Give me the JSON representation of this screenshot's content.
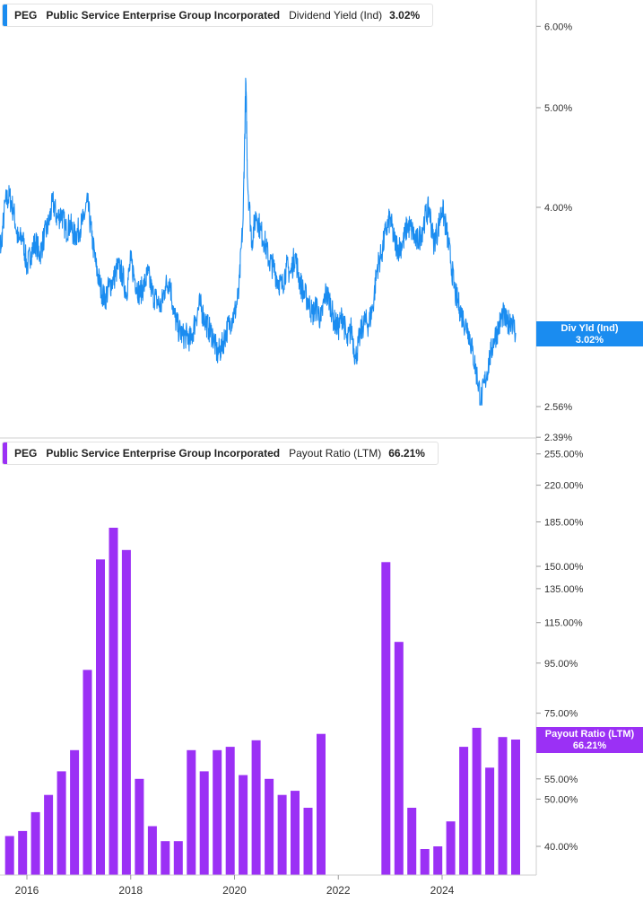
{
  "panels": [
    {
      "ticker": "PEG",
      "company": "Public Service Enterprise Group Incorporated",
      "metric": "Dividend Yield (Ind)",
      "value": "3.02%",
      "color": "#1a8cf0"
    },
    {
      "ticker": "PEG",
      "company": "Public Service Enterprise Group Incorporated",
      "metric": "Payout Ratio (LTM)",
      "value": "66.21%",
      "color": "#9b30f5"
    }
  ],
  "tags": {
    "top": {
      "label": "Div Yld (Ind)",
      "value": "3.02%",
      "color": "#1a8cf0"
    },
    "bottom": {
      "label": "Payout Ratio (LTM)",
      "value": "66.21%",
      "color": "#9b30f5"
    }
  },
  "chart_data": [
    {
      "type": "line",
      "title": "Dividend Yield (Ind)",
      "series": [
        {
          "name": "Div Yld (Ind)"
        }
      ],
      "x_range": [
        "2015-06",
        "2025-06"
      ],
      "y_scale": "log",
      "y_range": [
        2.39,
        6.6
      ],
      "y_ticks": [
        "6.00%",
        "5.00%",
        "4.00%",
        "2.56%",
        "2.39%"
      ],
      "points": [
        [
          "2015-06",
          3.9
        ],
        [
          "2015-07",
          3.65
        ],
        [
          "2015-08",
          4.05
        ],
        [
          "2015-09",
          4.1
        ],
        [
          "2015-10",
          3.95
        ],
        [
          "2015-11",
          3.7
        ],
        [
          "2015-12",
          3.75
        ],
        [
          "2016-01",
          3.5
        ],
        [
          "2016-02",
          3.62
        ],
        [
          "2016-03",
          3.7
        ],
        [
          "2016-04",
          3.6
        ],
        [
          "2016-05",
          3.75
        ],
        [
          "2016-06",
          3.85
        ],
        [
          "2016-07",
          4.05
        ],
        [
          "2016-08",
          3.9
        ],
        [
          "2016-09",
          3.95
        ],
        [
          "2016-10",
          3.8
        ],
        [
          "2016-11",
          3.85
        ],
        [
          "2016-12",
          3.75
        ],
        [
          "2017-01",
          3.8
        ],
        [
          "2017-02",
          3.88
        ],
        [
          "2017-03",
          4.05
        ],
        [
          "2017-04",
          3.75
        ],
        [
          "2017-05",
          3.5
        ],
        [
          "2017-06",
          3.35
        ],
        [
          "2017-07",
          3.25
        ],
        [
          "2017-08",
          3.35
        ],
        [
          "2017-09",
          3.4
        ],
        [
          "2017-10",
          3.5
        ],
        [
          "2017-11",
          3.45
        ],
        [
          "2017-12",
          3.3
        ],
        [
          "2018-01",
          3.55
        ],
        [
          "2018-02",
          3.4
        ],
        [
          "2018-03",
          3.3
        ],
        [
          "2018-04",
          3.35
        ],
        [
          "2018-05",
          3.45
        ],
        [
          "2018-06",
          3.3
        ],
        [
          "2018-07",
          3.25
        ],
        [
          "2018-08",
          3.2
        ],
        [
          "2018-09",
          3.35
        ],
        [
          "2018-10",
          3.4
        ],
        [
          "2018-11",
          3.15
        ],
        [
          "2018-12",
          3.05
        ],
        [
          "2019-01",
          3.0
        ],
        [
          "2019-02",
          3.0
        ],
        [
          "2019-03",
          2.97
        ],
        [
          "2019-04",
          3.12
        ],
        [
          "2019-05",
          3.22
        ],
        [
          "2019-06",
          3.12
        ],
        [
          "2019-07",
          3.05
        ],
        [
          "2019-08",
          3.0
        ],
        [
          "2019-09",
          2.88
        ],
        [
          "2019-10",
          2.92
        ],
        [
          "2019-11",
          3.02
        ],
        [
          "2019-12",
          3.1
        ],
        [
          "2020-01",
          3.15
        ],
        [
          "2020-02",
          3.3
        ],
        [
          "2020-03",
          3.9
        ],
        [
          "2020-03-20",
          5.3
        ],
        [
          "2020-04",
          4.25
        ],
        [
          "2020-05",
          3.7
        ],
        [
          "2020-06",
          3.95
        ],
        [
          "2020-07",
          3.8
        ],
        [
          "2020-08",
          3.7
        ],
        [
          "2020-09",
          3.55
        ],
        [
          "2020-10",
          3.5
        ],
        [
          "2020-11",
          3.4
        ],
        [
          "2020-12",
          3.35
        ],
        [
          "2021-01",
          3.5
        ],
        [
          "2021-02",
          3.45
        ],
        [
          "2021-03",
          3.6
        ],
        [
          "2021-04",
          3.4
        ],
        [
          "2021-05",
          3.3
        ],
        [
          "2021-06",
          3.25
        ],
        [
          "2021-07",
          3.15
        ],
        [
          "2021-08",
          3.2
        ],
        [
          "2021-09",
          3.1
        ],
        [
          "2021-10",
          3.3
        ],
        [
          "2021-11",
          3.25
        ],
        [
          "2021-12",
          3.1
        ],
        [
          "2022-01",
          3.05
        ],
        [
          "2022-02",
          3.15
        ],
        [
          "2022-03",
          2.95
        ],
        [
          "2022-04",
          3.05
        ],
        [
          "2022-05",
          2.85
        ],
        [
          "2022-06",
          3.0
        ],
        [
          "2022-07",
          3.1
        ],
        [
          "2022-08",
          3.08
        ],
        [
          "2022-09",
          3.2
        ],
        [
          "2022-10",
          3.5
        ],
        [
          "2022-11",
          3.6
        ],
        [
          "2022-12",
          3.8
        ],
        [
          "2023-01",
          3.9
        ],
        [
          "2023-02",
          3.7
        ],
        [
          "2023-03",
          3.65
        ],
        [
          "2023-04",
          3.7
        ],
        [
          "2023-05",
          3.85
        ],
        [
          "2023-06",
          3.8
        ],
        [
          "2023-07",
          3.7
        ],
        [
          "2023-08",
          3.75
        ],
        [
          "2023-09",
          3.9
        ],
        [
          "2023-10",
          4.0
        ],
        [
          "2023-11",
          3.7
        ],
        [
          "2023-12",
          3.8
        ],
        [
          "2024-01",
          4.0
        ],
        [
          "2024-02",
          3.8
        ],
        [
          "2024-03",
          3.55
        ],
        [
          "2024-04",
          3.3
        ],
        [
          "2024-05",
          3.2
        ],
        [
          "2024-06",
          3.1
        ],
        [
          "2024-07",
          3.05
        ],
        [
          "2024-08",
          2.9
        ],
        [
          "2024-09",
          2.75
        ],
        [
          "2024-10",
          2.6
        ],
        [
          "2024-11",
          2.72
        ],
        [
          "2024-12",
          2.85
        ],
        [
          "2025-01",
          2.98
        ],
        [
          "2025-02",
          3.05
        ],
        [
          "2025-03",
          3.15
        ],
        [
          "2025-04",
          3.08
        ],
        [
          "2025-05",
          3.12
        ],
        [
          "2025-06",
          3.02
        ]
      ]
    },
    {
      "type": "bar",
      "title": "Payout Ratio (LTM)",
      "series": [
        {
          "name": "Payout Ratio (LTM)"
        }
      ],
      "x_ticks": [
        "2016",
        "2018",
        "2020",
        "2022",
        "2024"
      ],
      "y_scale": "log",
      "y_range": [
        35,
        260
      ],
      "y_ticks": [
        "255.00%",
        "220.00%",
        "185.00%",
        "150.00%",
        "135.00%",
        "115.00%",
        "95.00%",
        "75.00%",
        "55.00%",
        "50.00%",
        "40.00%"
      ],
      "bars": [
        [
          "2015-09",
          42
        ],
        [
          "2015-12",
          43
        ],
        [
          "2016-03",
          47
        ],
        [
          "2016-06",
          51
        ],
        [
          "2016-09",
          57
        ],
        [
          "2016-12",
          63
        ],
        [
          "2017-03",
          92
        ],
        [
          "2017-06",
          155
        ],
        [
          "2017-09",
          180
        ],
        [
          "2017-12",
          162
        ],
        [
          "2018-03",
          55
        ],
        [
          "2018-06",
          44
        ],
        [
          "2018-09",
          41
        ],
        [
          "2018-12",
          41
        ],
        [
          "2019-03",
          63
        ],
        [
          "2019-06",
          57
        ],
        [
          "2019-09",
          63
        ],
        [
          "2019-12",
          64
        ],
        [
          "2020-03",
          56
        ],
        [
          "2020-06",
          66
        ],
        [
          "2020-09",
          55
        ],
        [
          "2020-12",
          51
        ],
        [
          "2021-03",
          52
        ],
        [
          "2021-06",
          48
        ],
        [
          "2021-09",
          68
        ],
        [
          "2022-12",
          153
        ],
        [
          "2023-03",
          105
        ],
        [
          "2023-06",
          48
        ],
        [
          "2023-09",
          39.5
        ],
        [
          "2023-12",
          40
        ],
        [
          "2024-03",
          45
        ],
        [
          "2024-06",
          64
        ],
        [
          "2024-09",
          70
        ],
        [
          "2024-12",
          58
        ],
        [
          "2025-03",
          67
        ],
        [
          "2025-06",
          66.21
        ]
      ]
    }
  ]
}
